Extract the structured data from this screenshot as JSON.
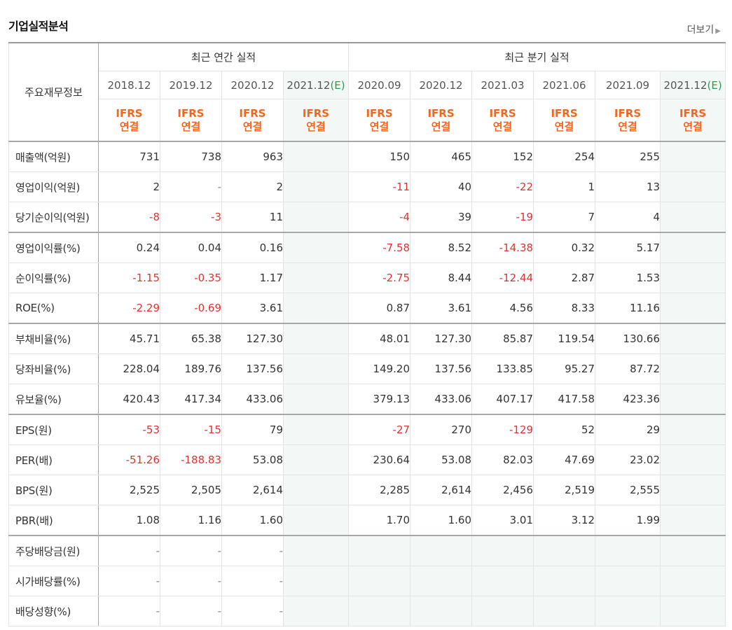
{
  "header": {
    "title": "기업실적분석",
    "more_label": "더보기"
  },
  "table": {
    "label_header": "주요재무정보",
    "group_annual": "최근 연간 실적",
    "group_quarter": "최근 분기 실적",
    "annual_periods": [
      "2018.12",
      "2019.12",
      "2020.12",
      "2021.12"
    ],
    "quarter_periods": [
      "2020.09",
      "2020.12",
      "2021.03",
      "2021.06",
      "2021.09",
      "2021.12"
    ],
    "estimate_mark": "(E)",
    "ifrs_line1": "IFRS",
    "ifrs_line2": "연결",
    "rows": [
      {
        "label": "매출액(억원)",
        "annual": [
          "731",
          "738",
          "963",
          ""
        ],
        "quarter": [
          "150",
          "465",
          "152",
          "254",
          "255",
          ""
        ]
      },
      {
        "label": "영업이익(억원)",
        "annual": [
          "2",
          "-",
          "2",
          ""
        ],
        "quarter": [
          "-11",
          "40",
          "-22",
          "1",
          "13",
          ""
        ]
      },
      {
        "label": "당기순이익(억원)",
        "annual": [
          "-8",
          "-3",
          "11",
          ""
        ],
        "quarter": [
          "-4",
          "39",
          "-19",
          "7",
          "4",
          ""
        ]
      },
      {
        "label": "영업이익률(%)",
        "annual": [
          "0.24",
          "0.04",
          "0.16",
          ""
        ],
        "quarter": [
          "-7.58",
          "8.52",
          "-14.38",
          "0.32",
          "5.17",
          ""
        ]
      },
      {
        "label": "순이익률(%)",
        "annual": [
          "-1.15",
          "-0.35",
          "1.17",
          ""
        ],
        "quarter": [
          "-2.75",
          "8.44",
          "-12.44",
          "2.87",
          "1.53",
          ""
        ]
      },
      {
        "label": "ROE(%)",
        "annual": [
          "-2.29",
          "-0.69",
          "3.61",
          ""
        ],
        "quarter": [
          "0.87",
          "3.61",
          "4.56",
          "8.33",
          "11.16",
          ""
        ]
      },
      {
        "label": "부채비율(%)",
        "annual": [
          "45.71",
          "65.38",
          "127.30",
          ""
        ],
        "quarter": [
          "48.01",
          "127.30",
          "85.87",
          "119.54",
          "130.66",
          ""
        ]
      },
      {
        "label": "당좌비율(%)",
        "annual": [
          "228.04",
          "189.76",
          "137.56",
          ""
        ],
        "quarter": [
          "149.20",
          "137.56",
          "133.85",
          "95.27",
          "87.72",
          ""
        ]
      },
      {
        "label": "유보율(%)",
        "annual": [
          "420.43",
          "417.34",
          "433.06",
          ""
        ],
        "quarter": [
          "379.13",
          "433.06",
          "407.17",
          "417.58",
          "423.36",
          ""
        ]
      },
      {
        "label": "EPS(원)",
        "annual": [
          "-53",
          "-15",
          "79",
          ""
        ],
        "quarter": [
          "-27",
          "270",
          "-129",
          "52",
          "29",
          ""
        ]
      },
      {
        "label": "PER(배)",
        "annual": [
          "-51.26",
          "-188.83",
          "53.08",
          ""
        ],
        "quarter": [
          "230.64",
          "53.08",
          "82.03",
          "47.69",
          "23.02",
          ""
        ]
      },
      {
        "label": "BPS(원)",
        "annual": [
          "2,525",
          "2,505",
          "2,614",
          ""
        ],
        "quarter": [
          "2,285",
          "2,614",
          "2,456",
          "2,519",
          "2,555",
          ""
        ]
      },
      {
        "label": "PBR(배)",
        "annual": [
          "1.08",
          "1.16",
          "1.60",
          ""
        ],
        "quarter": [
          "1.70",
          "1.60",
          "3.01",
          "3.12",
          "1.99",
          ""
        ]
      },
      {
        "label": "주당배당금(원)",
        "annual": [
          "-",
          "-",
          "-",
          ""
        ],
        "quarter": [
          "",
          "",
          "",
          "",
          "",
          ""
        ]
      },
      {
        "label": "시가배당률(%)",
        "annual": [
          "-",
          "-",
          "-",
          ""
        ],
        "quarter": [
          "",
          "",
          "",
          "",
          "",
          ""
        ]
      },
      {
        "label": "배당성향(%)",
        "annual": [
          "-",
          "-",
          "-",
          ""
        ],
        "quarter": [
          "",
          "",
          "",
          "",
          "",
          ""
        ]
      }
    ]
  },
  "colors": {
    "negative": "#e03131",
    "ifrs": "#f2661f",
    "estimate": "#2e9e4a",
    "estimate_bg": "#f3f7f6"
  }
}
